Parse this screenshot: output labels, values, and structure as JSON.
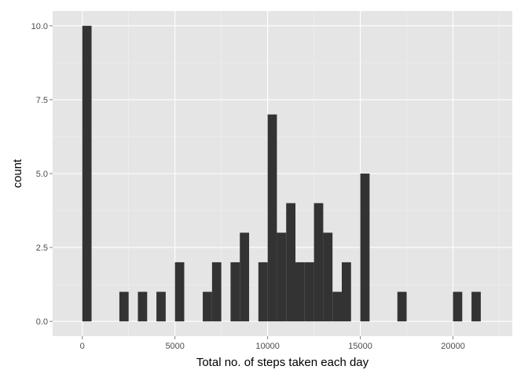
{
  "chart_data": {
    "type": "bar",
    "subtype": "histogram",
    "title": "",
    "xlabel": "Total no. of steps taken each day",
    "ylabel": "count",
    "xlim": [
      -1600,
      23200
    ],
    "ylim": [
      -0.5,
      10.5
    ],
    "x_ticks": [
      0,
      5000,
      10000,
      15000,
      20000
    ],
    "x_tick_labels": [
      "0",
      "5000",
      "10000",
      "15000",
      "20000"
    ],
    "y_ticks": [
      0,
      2.5,
      5,
      7.5,
      10
    ],
    "y_tick_labels": [
      "0.0",
      "2.5",
      "5.0",
      "7.5",
      "10.0"
    ],
    "grid": true,
    "panel_color": "#e5e5e5",
    "grid_color": "#ffffff",
    "bar_color": "#333333",
    "bin_width": 500,
    "bins": [
      {
        "x_start": 0,
        "x_end": 500,
        "count": 10
      },
      {
        "x_start": 2000,
        "x_end": 2500,
        "count": 1
      },
      {
        "x_start": 3000,
        "x_end": 3500,
        "count": 1
      },
      {
        "x_start": 4000,
        "x_end": 4500,
        "count": 1
      },
      {
        "x_start": 5000,
        "x_end": 5500,
        "count": 2
      },
      {
        "x_start": 6500,
        "x_end": 7000,
        "count": 1
      },
      {
        "x_start": 7000,
        "x_end": 7500,
        "count": 2
      },
      {
        "x_start": 8000,
        "x_end": 8500,
        "count": 2
      },
      {
        "x_start": 8500,
        "x_end": 9000,
        "count": 3
      },
      {
        "x_start": 9500,
        "x_end": 10000,
        "count": 2
      },
      {
        "x_start": 10000,
        "x_end": 10500,
        "count": 7
      },
      {
        "x_start": 10500,
        "x_end": 11000,
        "count": 3
      },
      {
        "x_start": 11000,
        "x_end": 11500,
        "count": 4
      },
      {
        "x_start": 11500,
        "x_end": 12000,
        "count": 2
      },
      {
        "x_start": 12000,
        "x_end": 12500,
        "count": 2
      },
      {
        "x_start": 12500,
        "x_end": 13000,
        "count": 4
      },
      {
        "x_start": 13000,
        "x_end": 13500,
        "count": 3
      },
      {
        "x_start": 13500,
        "x_end": 14000,
        "count": 1
      },
      {
        "x_start": 14000,
        "x_end": 14500,
        "count": 2
      },
      {
        "x_start": 15000,
        "x_end": 15500,
        "count": 5
      },
      {
        "x_start": 17000,
        "x_end": 17500,
        "count": 1
      },
      {
        "x_start": 20000,
        "x_end": 20500,
        "count": 1
      },
      {
        "x_start": 21000,
        "x_end": 21500,
        "count": 1
      }
    ]
  }
}
